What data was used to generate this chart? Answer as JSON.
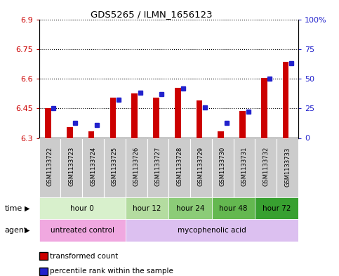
{
  "title": "GDS5265 / ILMN_1656123",
  "samples": [
    "GSM1133722",
    "GSM1133723",
    "GSM1133724",
    "GSM1133725",
    "GSM1133726",
    "GSM1133727",
    "GSM1133728",
    "GSM1133729",
    "GSM1133730",
    "GSM1133731",
    "GSM1133732",
    "GSM1133733"
  ],
  "red_values": [
    6.45,
    6.355,
    6.335,
    6.505,
    6.525,
    6.505,
    6.555,
    6.49,
    6.335,
    6.435,
    6.605,
    6.685
  ],
  "blue_values": [
    25,
    13,
    11,
    32,
    38,
    37,
    42,
    26,
    13,
    22,
    50,
    63
  ],
  "ylim_left": [
    6.3,
    6.9
  ],
  "ylim_right": [
    0,
    100
  ],
  "yticks_left": [
    6.3,
    6.45,
    6.6,
    6.75,
    6.9
  ],
  "yticks_right": [
    0,
    25,
    50,
    75,
    100
  ],
  "ytick_labels_left": [
    "6.3",
    "6.45",
    "6.6",
    "6.75",
    "6.9"
  ],
  "ytick_labels_right": [
    "0",
    "25",
    "50",
    "75",
    "100%"
  ],
  "time_groups": [
    {
      "label": "hour 0",
      "start": 0,
      "end": 4,
      "color": "#d8f0cc"
    },
    {
      "label": "hour 12",
      "start": 4,
      "end": 6,
      "color": "#b4dca0"
    },
    {
      "label": "hour 24",
      "start": 6,
      "end": 8,
      "color": "#8ccc78"
    },
    {
      "label": "hour 48",
      "start": 8,
      "end": 10,
      "color": "#64b850"
    },
    {
      "label": "hour 72",
      "start": 10,
      "end": 12,
      "color": "#38a030"
    }
  ],
  "agent_groups": [
    {
      "label": "untreated control",
      "start": 0,
      "end": 4,
      "color": "#f0a8e0"
    },
    {
      "label": "mycophenolic acid",
      "start": 4,
      "end": 12,
      "color": "#dcc0f0"
    }
  ],
  "bar_bottom": 6.3,
  "red_color": "#cc0000",
  "blue_color": "#2222cc",
  "bar_width": 0.28,
  "sample_box_color": "#cccccc",
  "left_axis_color": "#cc0000",
  "right_axis_color": "#2222cc",
  "grid_color": "black",
  "legend_items": [
    {
      "color": "#cc0000",
      "label": "transformed count"
    },
    {
      "color": "#2222cc",
      "label": "percentile rank within the sample"
    }
  ]
}
